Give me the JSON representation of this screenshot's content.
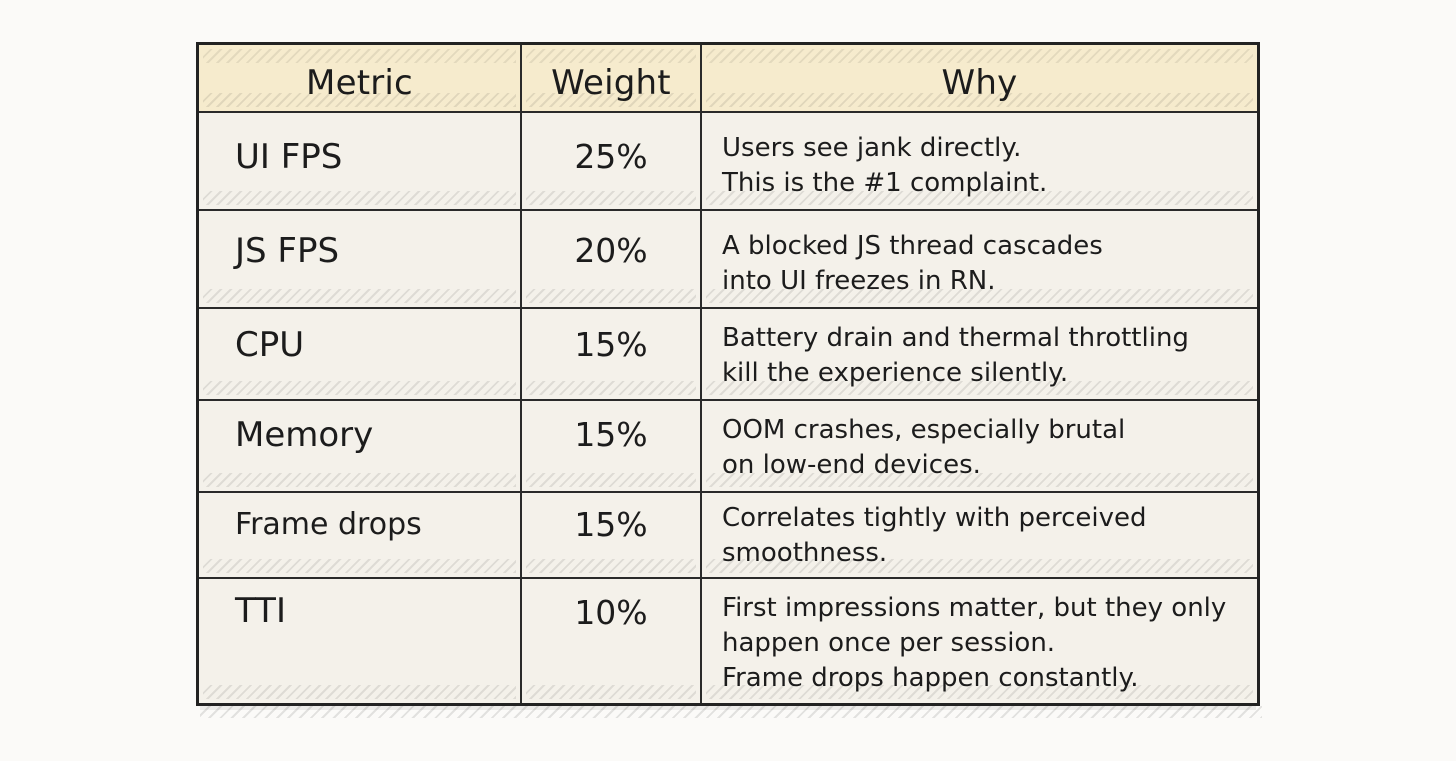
{
  "chart_data": {
    "type": "table",
    "columns": [
      "Metric",
      "Weight",
      "Why"
    ],
    "rows": [
      {
        "metric": "UI FPS",
        "weight": "25%",
        "why": [
          "Users see jank directly.",
          "This is the #1 complaint."
        ]
      },
      {
        "metric": "JS FPS",
        "weight": "20%",
        "why": [
          "A blocked JS thread cascades",
          "into UI freezes in RN."
        ]
      },
      {
        "metric": "CPU",
        "weight": "15%",
        "why": [
          "Battery drain and thermal throttling",
          "kill the experience silently."
        ]
      },
      {
        "metric": "Memory",
        "weight": "15%",
        "why": [
          "OOM crashes, especially brutal",
          "on low-end devices."
        ]
      },
      {
        "metric": "Frame drops",
        "weight": "15%",
        "why": [
          "Correlates tightly with perceived",
          "smoothness."
        ]
      },
      {
        "metric": "TTI",
        "weight": "10%",
        "why": [
          "First impressions matter, but they only",
          "happen once per session.",
          "Frame drops happen constantly."
        ]
      }
    ]
  },
  "colors": {
    "header_bg": "#f6ebcd",
    "cell_bg": "#f4f1ea",
    "border": "#222222"
  }
}
